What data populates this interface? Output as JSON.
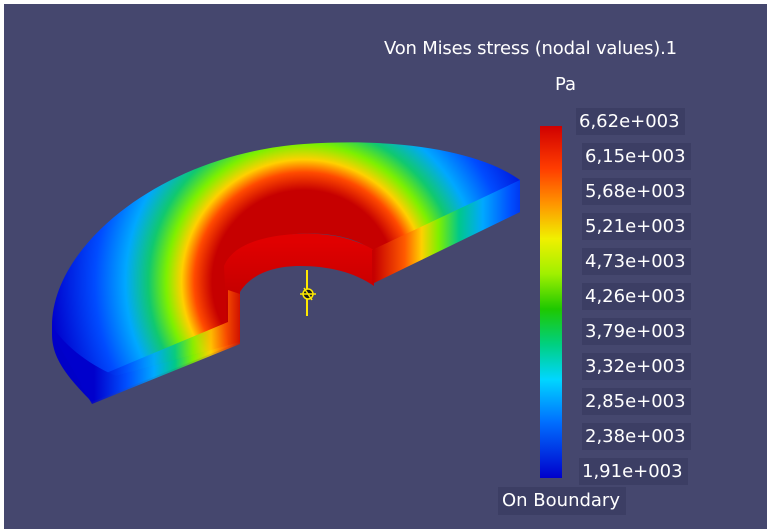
{
  "legend": {
    "title": "Von Mises stress (nodal values).1",
    "unit": "Pa",
    "values": [
      "6,62e+003",
      "6,15e+003",
      "5,68e+003",
      "5,21e+003",
      "4,73e+003",
      "4,26e+003",
      "3,79e+003",
      "3,32e+003",
      "2,85e+003",
      "2,38e+003",
      "1,91e+003"
    ],
    "colors": [
      "#d00000",
      "#ff5a00",
      "#ffb000",
      "#f3f300",
      "#9cff00",
      "#26c800",
      "#00d08c",
      "#00d6ff",
      "#0080ff",
      "#0040ff",
      "#0000cc"
    ],
    "footer": "On Boundary"
  },
  "scene": {
    "background": "#45476e",
    "model": "half-ring-solid",
    "axis_marker_color": "#ffea00"
  }
}
